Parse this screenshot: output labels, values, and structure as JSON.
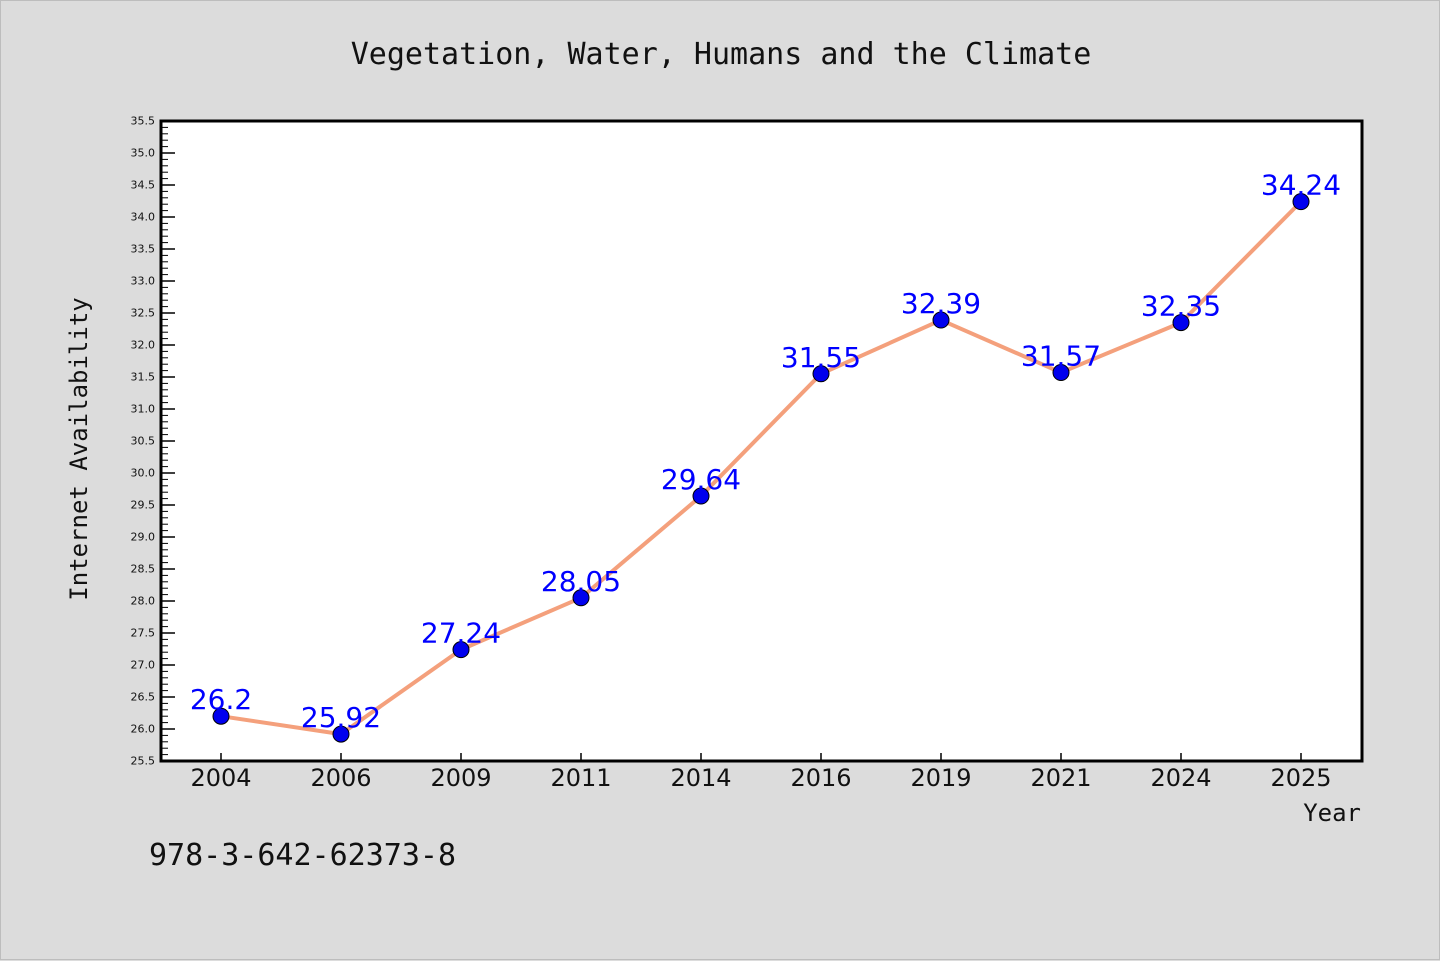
{
  "chart_data": {
    "type": "line",
    "title": "Vegetation, Water, Humans and the Climate",
    "xlabel": "Year",
    "ylabel": "Internet Availability",
    "categories": [
      "2004",
      "2006",
      "2009",
      "2011",
      "2014",
      "2016",
      "2019",
      "2021",
      "2024",
      "2025"
    ],
    "series": [
      {
        "values": [
          26.2,
          25.92,
          27.24,
          28.05,
          29.64,
          31.55,
          32.39,
          31.57,
          32.35,
          34.24
        ],
        "labels": [
          "26.2",
          "25.92",
          "27.24",
          "28.05",
          "29.64",
          "31.55",
          "32.39",
          "31.57",
          "32.35",
          "34.24"
        ],
        "line_color": "#f4a07c",
        "marker_color": "#0000ee",
        "label_color": "#0000ff"
      }
    ],
    "ylim": [
      25.5,
      35.5
    ],
    "y_ticks": [
      "25.5",
      "26.0",
      "26.5",
      "27.0",
      "27.5",
      "28.0",
      "28.5",
      "29.0",
      "29.5",
      "30.0",
      "30.5",
      "31.0",
      "31.5",
      "32.0",
      "32.5",
      "33.0",
      "33.5",
      "34.0",
      "34.5",
      "35.0",
      "35.5"
    ],
    "grid": false,
    "annotation": "978-3-642-62373-8"
  }
}
